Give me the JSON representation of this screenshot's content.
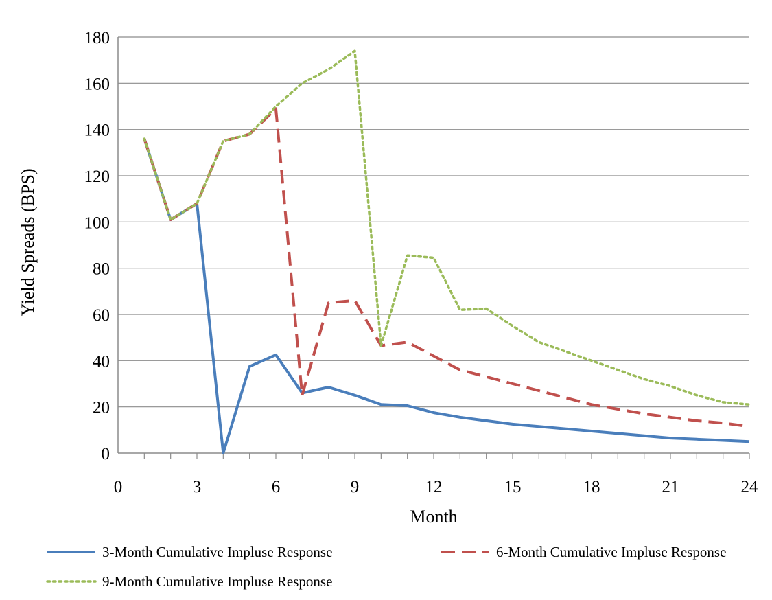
{
  "chart_data": {
    "type": "line",
    "xlabel": "Month",
    "ylabel": "Yield Spreads (BPS)",
    "xlim": [
      0,
      24
    ],
    "ylim": [
      0,
      180
    ],
    "x_ticks": [
      "0",
      "3",
      "6",
      "9",
      "12",
      "15",
      "18",
      "21",
      "24"
    ],
    "y_ticks": [
      "0",
      "20",
      "40",
      "60",
      "80",
      "100",
      "120",
      "140",
      "160",
      "180"
    ],
    "grid": "horizontal",
    "legend_position": "bottom",
    "x": [
      1,
      2,
      3,
      4,
      5,
      6,
      7,
      8,
      9,
      10,
      11,
      12,
      13,
      14,
      15,
      16,
      17,
      18,
      19,
      20,
      21,
      22,
      23,
      24
    ],
    "series": [
      {
        "name": "3-Month Cumulative Impluse Response",
        "color": "#4a7ebb",
        "style": "solid",
        "values": [
          136,
          101,
          108,
          0,
          37.5,
          42.5,
          26,
          28.5,
          25,
          21,
          20.5,
          17.5,
          15.5,
          14,
          12.5,
          11.5,
          10.5,
          9.5,
          8.5,
          7.5,
          6.5,
          6,
          5.5,
          5
        ]
      },
      {
        "name": "6-Month Cumulative Impluse Response",
        "color": "#c0504d",
        "style": "dashed",
        "values": [
          136,
          101,
          108,
          135,
          138,
          149,
          25,
          65,
          66,
          46.5,
          48,
          42,
          36,
          33,
          30,
          27,
          24,
          21,
          19,
          17,
          15.5,
          14,
          13,
          11.5
        ]
      },
      {
        "name": "9-Month Cumulative Impluse Response",
        "color": "#9bbb59",
        "style": "dotted",
        "values": [
          136,
          101,
          108,
          135,
          138,
          150,
          160,
          166,
          174,
          46.5,
          85.5,
          84.5,
          62,
          62.5,
          55,
          48,
          44,
          40,
          36,
          32,
          29,
          25,
          22,
          21
        ]
      }
    ]
  }
}
